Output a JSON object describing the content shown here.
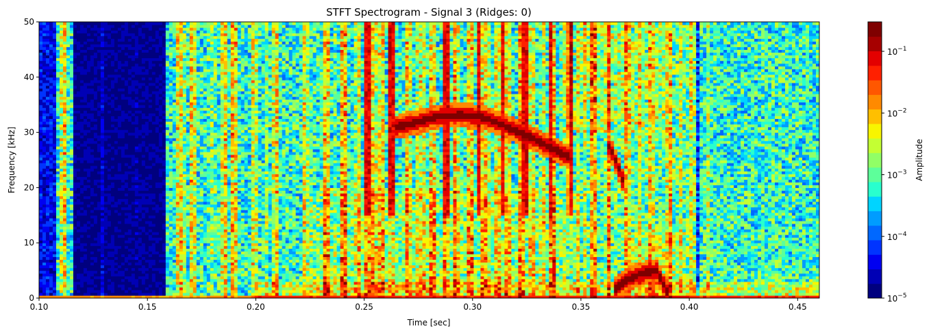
{
  "chart_data": {
    "type": "heatmap",
    "title": "STFT Spectrogram - Signal 3 (Ridges: 0)",
    "xlabel": "Time [sec]",
    "ylabel": "Frequency [kHz]",
    "xlim": [
      0.1,
      0.46
    ],
    "ylim": [
      0,
      50
    ],
    "x_ticks": [
      "0.10",
      "0.15",
      "0.20",
      "0.25",
      "0.30",
      "0.35",
      "0.40",
      "0.45"
    ],
    "x_tick_values": [
      0.1,
      0.15,
      0.2,
      0.25,
      0.3,
      0.35,
      0.4,
      0.45
    ],
    "y_ticks": [
      "0",
      "10",
      "20",
      "30",
      "40",
      "50"
    ],
    "y_tick_values": [
      0,
      10,
      20,
      30,
      40,
      50
    ],
    "colorbar": {
      "label": "Amplitude",
      "scale": "log",
      "range": [
        1e-05,
        0.3
      ],
      "ticks": [
        {
          "value": 1e-05,
          "base": "10",
          "exp": "−5"
        },
        {
          "value": 0.0001,
          "base": "10",
          "exp": "−4"
        },
        {
          "value": 0.001,
          "base": "10",
          "exp": "−3"
        },
        {
          "value": 0.01,
          "base": "10",
          "exp": "−2"
        },
        {
          "value": 0.1,
          "base": "10",
          "exp": "−1"
        }
      ],
      "colors": [
        "#00007f",
        "#0000b5",
        "#0000f1",
        "#0034ff",
        "#0068ff",
        "#009cff",
        "#00d4ff",
        "#29ffce",
        "#5dff9a",
        "#91ff66",
        "#c4ff33",
        "#f8f500",
        "#ffbf00",
        "#ff8a00",
        "#ff5700",
        "#ff2000",
        "#e30000",
        "#a60000",
        "#7f0000"
      ]
    },
    "ridges": [
      {
        "t": [
          0.265,
          0.275,
          0.285,
          0.295,
          0.305,
          0.315,
          0.325,
          0.335,
          0.345
        ],
        "f": [
          31.0,
          32.0,
          33.0,
          33.2,
          32.8,
          31.2,
          29.5,
          27.5,
          25.5
        ]
      },
      {
        "t": [
          0.362,
          0.365,
          0.368,
          0.37
        ],
        "f": [
          28.0,
          26.0,
          23.0,
          20.5
        ]
      },
      {
        "t": [
          0.365,
          0.372,
          0.378,
          0.385,
          0.39
        ],
        "f": [
          1.5,
          3.5,
          4.5,
          5.0,
          1.0
        ]
      }
    ]
  }
}
